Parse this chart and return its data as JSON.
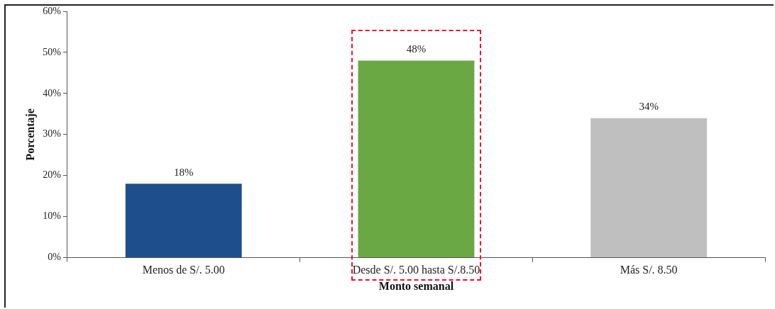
{
  "chart_data": {
    "type": "bar",
    "xlabel": "Monto semanal",
    "ylabel": "Porcentaje",
    "categories": [
      "Menos de S/. 5.00",
      "Desde S/. 5.00 hasta S/.8.50",
      "Más S/. 8.50"
    ],
    "values": [
      18,
      48,
      34
    ],
    "colors": [
      "#1f4e8c",
      "#6aa843",
      "#bfbfbf"
    ],
    "value_labels": [
      "18%",
      "48%",
      "34%"
    ],
    "ylim": [
      0,
      60
    ],
    "yticks": [
      {
        "value": 0,
        "label": "0%"
      },
      {
        "value": 10,
        "label": "10%"
      },
      {
        "value": 20,
        "label": "20%"
      },
      {
        "value": 30,
        "label": "30%"
      },
      {
        "value": 40,
        "label": "40%"
      },
      {
        "value": 50,
        "label": "50%"
      },
      {
        "value": 60,
        "label": "60%"
      }
    ],
    "grid": false,
    "legend": false
  }
}
